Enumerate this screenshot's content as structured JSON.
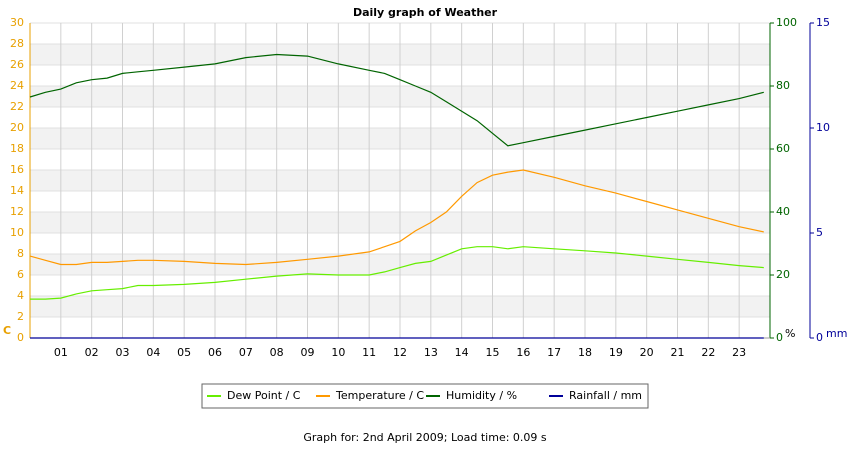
{
  "chart_data": {
    "type": "line",
    "title": "Daily graph of Weather",
    "y_label": "C",
    "y2_label": "%",
    "y3_label": "mm",
    "footer": "Graph for: 2nd April 2009; Load time: 0.09 s",
    "x": [
      0,
      0.5,
      1,
      1.5,
      2,
      2.5,
      3,
      3.5,
      4,
      5,
      6,
      7,
      8,
      9,
      10,
      11,
      11.5,
      12,
      12.5,
      13,
      13.5,
      14,
      14.5,
      15,
      15.5,
      16,
      17,
      18,
      19,
      20,
      21,
      22,
      23,
      23.8
    ],
    "xlim": [
      0,
      24
    ],
    "xticks": [
      {
        "value": 1,
        "label": "01"
      },
      {
        "value": 2,
        "label": "02"
      },
      {
        "value": 3,
        "label": "03"
      },
      {
        "value": 4,
        "label": "04"
      },
      {
        "value": 5,
        "label": "05"
      },
      {
        "value": 6,
        "label": "06"
      },
      {
        "value": 7,
        "label": "07"
      },
      {
        "value": 8,
        "label": "08"
      },
      {
        "value": 9,
        "label": "09"
      },
      {
        "value": 10,
        "label": "10"
      },
      {
        "value": 11,
        "label": "11"
      },
      {
        "value": 12,
        "label": "12"
      },
      {
        "value": 13,
        "label": "13"
      },
      {
        "value": 14,
        "label": "14"
      },
      {
        "value": 15,
        "label": "15"
      },
      {
        "value": 16,
        "label": "16"
      },
      {
        "value": 17,
        "label": "17"
      },
      {
        "value": 18,
        "label": "18"
      },
      {
        "value": 19,
        "label": "19"
      },
      {
        "value": 20,
        "label": "20"
      },
      {
        "value": 21,
        "label": "21"
      },
      {
        "value": 22,
        "label": "22"
      },
      {
        "value": 23,
        "label": "23"
      }
    ],
    "ylim": [
      0,
      30
    ],
    "yticks": [
      0,
      2,
      4,
      6,
      8,
      10,
      12,
      14,
      16,
      18,
      20,
      22,
      24,
      26,
      28,
      30
    ],
    "y2lim": [
      0,
      100
    ],
    "y2ticks": [
      0,
      20,
      40,
      60,
      80,
      100
    ],
    "y3lim": [
      0,
      15
    ],
    "y3ticks": [
      0,
      5,
      10,
      15
    ],
    "grid": true,
    "series": [
      {
        "name": "Dew Point / C",
        "color": "#66ee00",
        "values": [
          3.7,
          3.7,
          3.8,
          4.2,
          4.5,
          4.6,
          4.7,
          5.0,
          5.0,
          5.1,
          5.3,
          5.6,
          5.9,
          6.1,
          6.0,
          6.0,
          6.3,
          6.7,
          7.1,
          7.3,
          7.9,
          8.5,
          8.7,
          8.7,
          8.5,
          8.7,
          8.5,
          8.3,
          8.1,
          7.8,
          7.5,
          7.2,
          6.9,
          6.7
        ]
      },
      {
        "name": "Temperature / C",
        "color": "#ff9900",
        "values": [
          7.8,
          7.4,
          7.0,
          7.0,
          7.2,
          7.2,
          7.3,
          7.4,
          7.4,
          7.3,
          7.1,
          7.0,
          7.2,
          7.5,
          7.8,
          8.2,
          8.7,
          9.2,
          10.2,
          11.0,
          12.0,
          13.5,
          14.8,
          15.5,
          15.8,
          16.0,
          15.3,
          14.5,
          13.8,
          13.0,
          12.2,
          11.4,
          10.6,
          10.1
        ]
      },
      {
        "name": "Humidity / %",
        "color": "#006400",
        "axis": "y2",
        "values": [
          76.5,
          78,
          79,
          81,
          82,
          82.5,
          84,
          84.5,
          85,
          86,
          87,
          89,
          90,
          89.5,
          87,
          85,
          84,
          82,
          80,
          78,
          75,
          72,
          69,
          65,
          61,
          62,
          64,
          66,
          68,
          70,
          72,
          74,
          76,
          78
        ]
      },
      {
        "name": "Rainfall / mm",
        "color": "#000099",
        "axis": "y3",
        "values": [
          0,
          0,
          0,
          0,
          0,
          0,
          0,
          0,
          0,
          0,
          0,
          0,
          0,
          0,
          0,
          0,
          0,
          0,
          0,
          0,
          0,
          0,
          0,
          0,
          0,
          0,
          0,
          0,
          0,
          0,
          0,
          0,
          0,
          0
        ]
      }
    ]
  }
}
